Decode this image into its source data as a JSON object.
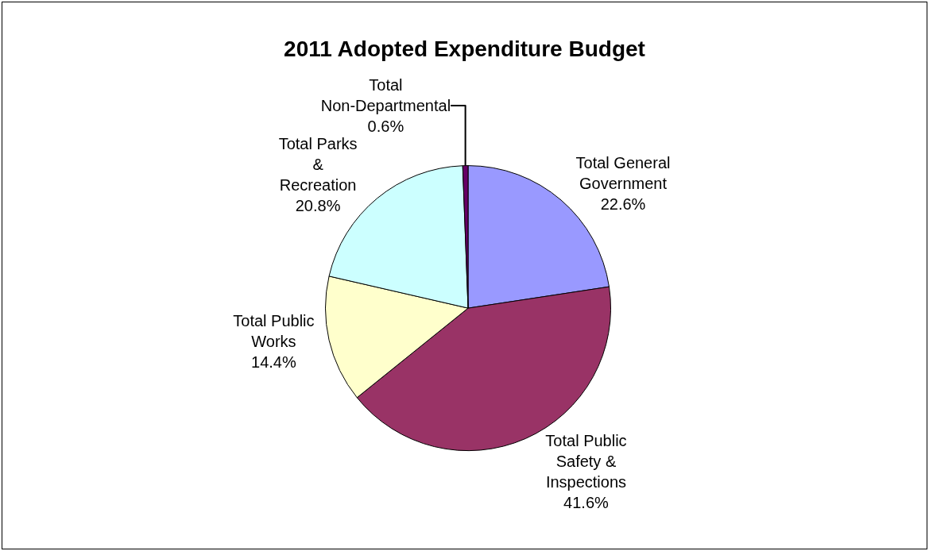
{
  "chart_data": {
    "type": "pie",
    "title": "2011 Adopted Expenditure Budget",
    "categories": [
      "Total General Government",
      "Total Public Safety & Inspections",
      "Total Public Works",
      "Total Parks & Recreation",
      "Total Non-Departmental"
    ],
    "values": [
      22.6,
      41.6,
      14.4,
      20.8,
      0.6
    ],
    "value_labels": [
      "22.6%",
      "41.6%",
      "14.4%",
      "20.8%",
      "0.6%"
    ],
    "colors": [
      "#9999ff",
      "#993366",
      "#ffffcc",
      "#ccffff",
      "#660066"
    ],
    "legend": false
  }
}
